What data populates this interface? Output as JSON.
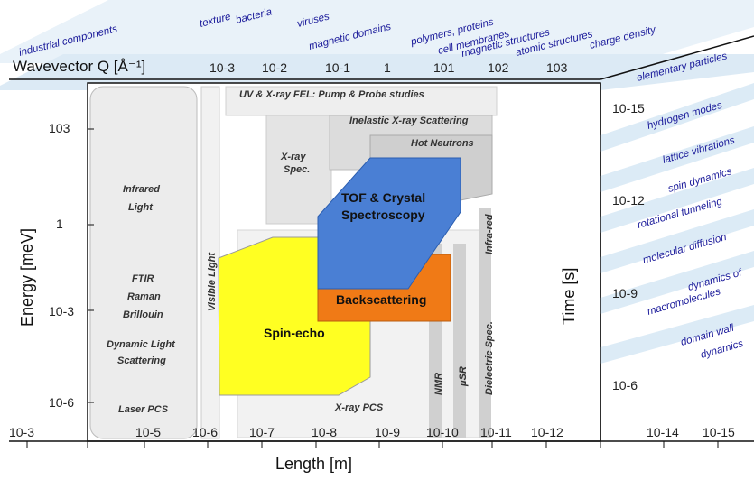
{
  "top_axis": {
    "label": "Wavevector Q [Å⁻¹]",
    "ticks": [
      "10-3",
      "10-2",
      "10-1",
      "1",
      "101",
      "102",
      "103"
    ]
  },
  "top_bands": [
    "industrial components",
    "texture",
    "bacteria",
    "viruses",
    "magnetic domains",
    "polymers, proteins",
    "cell membranes",
    "magnetic structures",
    "atomic structures",
    "charge density",
    "elementary particles"
  ],
  "left_axis": {
    "label": "Energy [meV]",
    "ticks": [
      "103",
      "1",
      "10-3",
      "10-6"
    ]
  },
  "bottom_axis": {
    "label": "Length [m]",
    "ticks": [
      "10-3",
      "10-5",
      "10-6",
      "10-7",
      "10-8",
      "10-9",
      "10-10",
      "10-11",
      "10-12",
      "10-14",
      "10-15"
    ]
  },
  "right_axis": {
    "label": "Time [s]",
    "ticks": [
      "10-15",
      "10-12",
      "10-9",
      "10-6"
    ]
  },
  "right_bands": [
    "hydrogen modes",
    "lattice vibrations",
    "spin dynamics",
    "rotational tunneling",
    "molecular diffusion",
    "dynamics of",
    "macromolecules",
    "domain wall",
    "dynamics"
  ],
  "techniques": {
    "fel": "UV & X-ray FEL: Pump & Probe studies",
    "ixs": "Inelastic X-ray Scattering",
    "hot_neutrons": "Hot Neutrons",
    "xray_spec_1": "X-ray",
    "xray_spec_2": "Spec.",
    "infrared_1": "Infrared",
    "infrared_2": "Light",
    "ftir": "FTIR",
    "raman": "Raman",
    "brillouin": "Brillouin",
    "dls_1": "Dynamic Light",
    "dls_2": "Scattering",
    "laser_pcs": "Laser PCS",
    "visible_light": "Visible Light",
    "tof_1": "TOF & Crystal",
    "tof_2": "Spectroscopy",
    "backscattering": "Backscattering",
    "spin_echo": "Spin-echo",
    "xray_pcs": "X-ray PCS",
    "nmr": "NMR",
    "musr": "μSR",
    "dielectric": "Dielectric Spec.",
    "infra_red": "Infra-red"
  },
  "colors": {
    "tof": "#4a7fd4",
    "backscattering": "#f07a16",
    "spin_echo": "#ffff1e",
    "band": "#d8e8f4",
    "band_text": "#1a1a9a"
  }
}
